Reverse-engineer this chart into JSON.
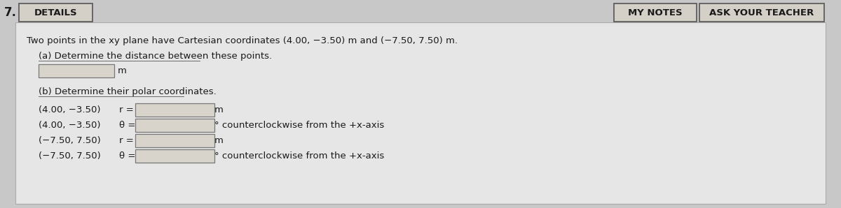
{
  "number": "7.",
  "details_label": "DETAILS",
  "my_notes_label": "MY NOTES",
  "ask_teacher_label": "ASK YOUR TEACHER",
  "main_text": "Two points in the xy plane have Cartesian coordinates (4.00, −3.50) m and (−7.50, 7.50) m.",
  "part_a_label": "(a) Determine the distance between these points.",
  "part_a_unit": "m",
  "part_b_label": "(b) Determine their polar coordinates.",
  "rows": [
    {
      "coord": "(4.00, −3.50)",
      "var": "r =",
      "unit": "m"
    },
    {
      "coord": "(4.00, −3.50)",
      "var": "θ =",
      "unit": "° counterclockwise from the +x-axis"
    },
    {
      "coord": "(−7.50, 7.50)",
      "var": "r =",
      "unit": "m"
    },
    {
      "coord": "(−7.50, 7.50)",
      "var": "θ =",
      "unit": "° counterclockwise from the +x-axis"
    }
  ],
  "bg_color": "#c8c8c8",
  "panel_facecolor": "#e6e6e6",
  "panel_edgecolor": "#aaaaaa",
  "text_color": "#1a1a1a",
  "details_bg": "#d4d0c8",
  "details_edge": "#555555",
  "buttons_bg": "#d4d0c8",
  "buttons_edge": "#555555",
  "input_facecolor": "#d8d4cc",
  "input_edgecolor": "#777777",
  "underline_color": "#555555",
  "figw": 12.0,
  "figh": 2.98,
  "dpi": 100
}
